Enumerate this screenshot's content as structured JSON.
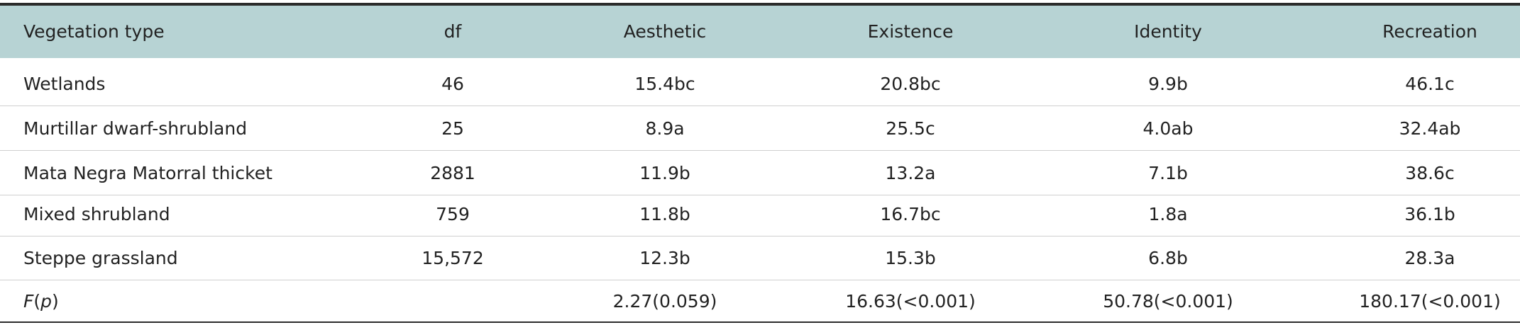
{
  "table": {
    "columns": [
      "Vegetation type",
      "df",
      "Aesthetic",
      "Existence",
      "Identity",
      "Recreation"
    ],
    "rows": [
      [
        "Wetlands",
        "46",
        "15.4bc",
        "20.8bc",
        "9.9b",
        "46.1c"
      ],
      [
        "Murtillar dwarf-shrubland",
        "25",
        "8.9a",
        "25.5c",
        "4.0ab",
        "32.4ab"
      ],
      [
        "Mata Negra Matorral thicket",
        "2881",
        "11.9b",
        "13.2a",
        "7.1b",
        "38.6c"
      ],
      [
        "Mixed shrubland",
        "759",
        "11.8b",
        "16.7bc",
        "1.8a",
        "36.1b"
      ],
      [
        "Steppe grassland",
        "15,572",
        "12.3b",
        "15.3b",
        "6.8b",
        "28.3a"
      ]
    ],
    "footer": {
      "label": [
        "F",
        "(",
        "p",
        ")"
      ],
      "values": [
        "2.27(0.059)",
        "16.63(<0.001)",
        "50.78(<0.001)",
        "180.17(<0.001)"
      ]
    }
  }
}
